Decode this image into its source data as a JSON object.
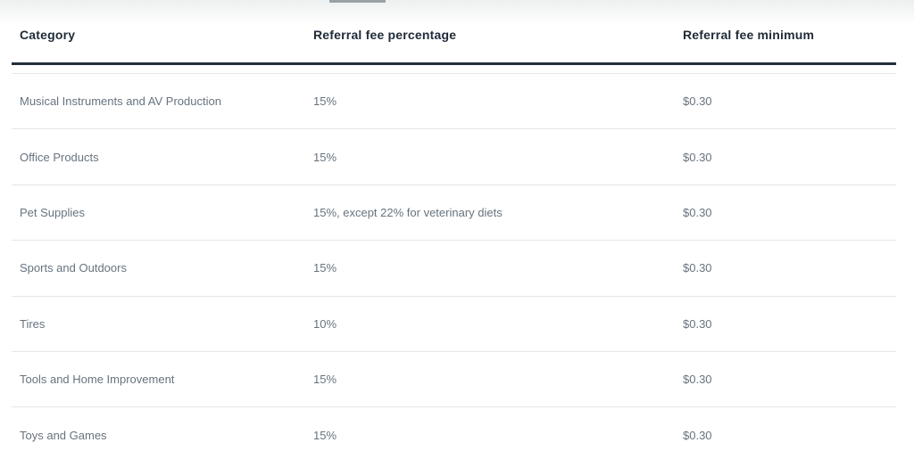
{
  "table": {
    "columns": [
      {
        "label": "Category"
      },
      {
        "label": "Referral fee percentage"
      },
      {
        "label": "Referral fee minimum"
      }
    ],
    "rows": [
      {
        "category": "Musical Instruments and AV Production",
        "percentage": "15%",
        "minimum": "$0.30"
      },
      {
        "category": "Office Products",
        "percentage": "15%",
        "minimum": "$0.30"
      },
      {
        "category": "Pet Supplies",
        "percentage": "15%, except 22% for veterinary diets",
        "minimum": "$0.30"
      },
      {
        "category": "Sports and Outdoors",
        "percentage": "15%",
        "minimum": "$0.30"
      },
      {
        "category": "Tires",
        "percentage": "10%",
        "minimum": "$0.30"
      },
      {
        "category": "Tools and Home Improvement",
        "percentage": "15%",
        "minimum": "$0.30"
      },
      {
        "category": "Toys and Games",
        "percentage": "15%",
        "minimum": "$0.30"
      }
    ]
  },
  "colors": {
    "header_text": "#1f2b38",
    "body_text": "#67737e",
    "thick_rule": "#232f3e",
    "row_divider": "#e2e7e8",
    "top_gradient": "#edf0f0",
    "tab_indicator": "#9aa1a6"
  }
}
